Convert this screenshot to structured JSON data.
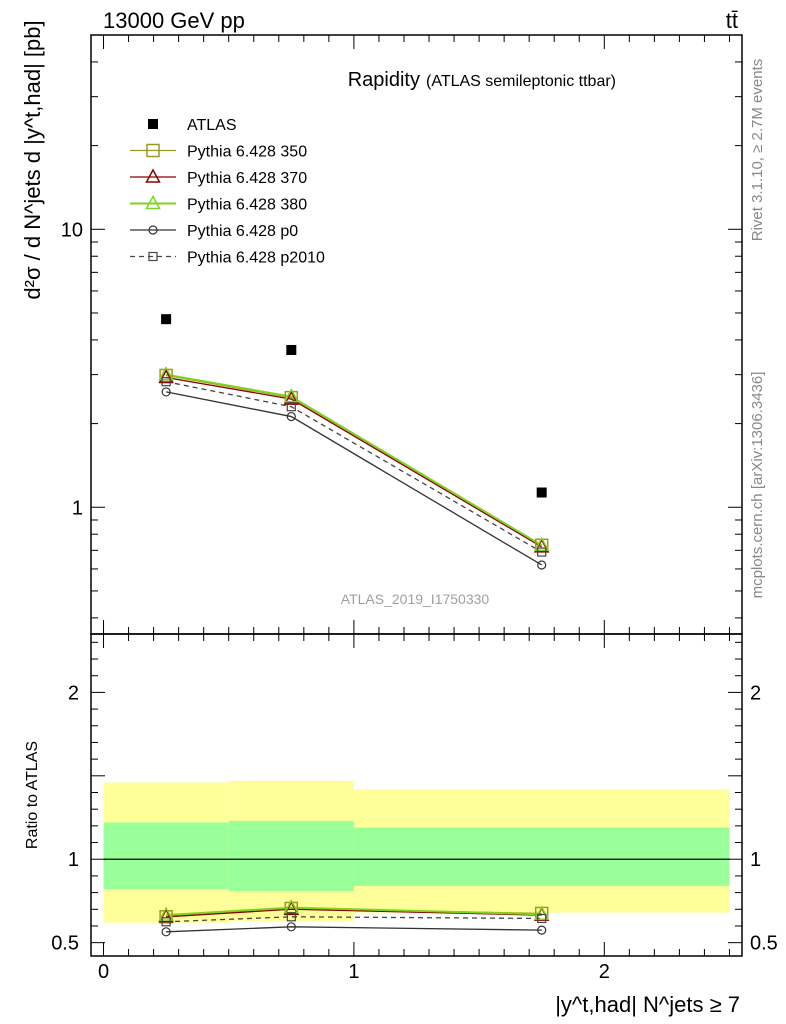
{
  "header": {
    "left": "13000 GeV pp",
    "right": "tt̄"
  },
  "watermark_right_top": "Rivet 3.1.10, ≥ 2.7M events",
  "watermark_right_bottom": "mcplots.cern.ch [arXiv:1306.3436]",
  "analysis_id": "ATLAS_2019_I1750330",
  "chart_data": [
    {
      "type": "scatter",
      "title": "Rapidity",
      "subtitle": "(ATLAS semileptonic ttbar)",
      "ylabel_main": "d²σ / d N^jets d |y^t,had| [pb]",
      "yscale": "log",
      "ylim": [
        0.35,
        50
      ],
      "xlim": [
        -0.05,
        2.55
      ],
      "yticks_labeled": [
        1,
        10
      ],
      "ytick_labels": [
        "1",
        "10"
      ],
      "legend_position": "top-left",
      "data": {
        "name": "ATLAS",
        "x": [
          0.25,
          0.75,
          1.75
        ],
        "y": [
          4.75,
          3.68,
          1.13
        ],
        "color": "#000000",
        "marker": "square-filled"
      },
      "series": [
        {
          "name": "Pythia 6.428 350",
          "x": [
            0.25,
            0.75,
            1.75
          ],
          "y": [
            2.98,
            2.48,
            0.73
          ],
          "color": "#9a9a20",
          "marker": "square-open",
          "dash": "solid"
        },
        {
          "name": "Pythia 6.428 370",
          "x": [
            0.25,
            0.75,
            1.75
          ],
          "y": [
            2.93,
            2.45,
            0.72
          ],
          "color": "#8b0000",
          "marker": "triangle-open",
          "dash": "solid"
        },
        {
          "name": "Pythia 6.428 380",
          "x": [
            0.25,
            0.75,
            1.75
          ],
          "y": [
            3.0,
            2.5,
            0.73
          ],
          "color": "#7fd320",
          "marker": "triangle-open",
          "dash": "solid"
        },
        {
          "name": "Pythia 6.428 p0",
          "x": [
            0.25,
            0.75,
            1.75
          ],
          "y": [
            2.6,
            2.12,
            0.62
          ],
          "color": "#333333",
          "marker": "circle-open",
          "dash": "solid"
        },
        {
          "name": "Pythia 6.428 p2010",
          "x": [
            0.25,
            0.75,
            1.75
          ],
          "y": [
            2.83,
            2.3,
            0.69
          ],
          "color": "#444444",
          "marker": "square-open-small",
          "dash": "dashed"
        }
      ]
    },
    {
      "type": "line",
      "ylabel": "Ratio to ATLAS",
      "xlabel": "|y^t,had| N^jets ≥ 7",
      "xlim": [
        -0.05,
        2.55
      ],
      "ylim": [
        0.42,
        2.35
      ],
      "xticks": [
        0,
        1,
        2
      ],
      "xtick_labels": [
        "0",
        "1",
        "2"
      ],
      "yticks_labeled": [
        0.5,
        1,
        2
      ],
      "ytick_labels": [
        "0.5",
        "1",
        "2"
      ],
      "bands": {
        "bins": [
          [
            0,
            0.5
          ],
          [
            0.5,
            1.0
          ],
          [
            1.0,
            2.5
          ]
        ],
        "yellow": [
          [
            0.62,
            1.46
          ],
          [
            0.63,
            1.47
          ],
          [
            0.68,
            1.42
          ]
        ],
        "green": [
          [
            0.82,
            1.22
          ],
          [
            0.81,
            1.23
          ],
          [
            0.84,
            1.19
          ]
        ],
        "yellow_color": "#ffff99",
        "green_color": "#99ff99"
      },
      "series": [
        {
          "name": "Pythia 6.428 350",
          "x": [
            0.25,
            0.75,
            1.75
          ],
          "y": [
            0.655,
            0.705,
            0.675
          ],
          "color": "#9a9a20",
          "marker": "square-open",
          "dash": "solid"
        },
        {
          "name": "Pythia 6.428 370",
          "x": [
            0.25,
            0.75,
            1.75
          ],
          "y": [
            0.655,
            0.7,
            0.665
          ],
          "color": "#8b0000",
          "marker": "triangle-open",
          "dash": "solid"
        },
        {
          "name": "Pythia 6.428 380",
          "x": [
            0.25,
            0.75,
            1.75
          ],
          "y": [
            0.665,
            0.71,
            0.67
          ],
          "color": "#7fd320",
          "marker": "triangle-open",
          "dash": "solid"
        },
        {
          "name": "Pythia 6.428 p0",
          "x": [
            0.25,
            0.75,
            1.75
          ],
          "y": [
            0.565,
            0.595,
            0.575
          ],
          "color": "#333333",
          "marker": "circle-open",
          "dash": "solid"
        },
        {
          "name": "Pythia 6.428 p2010",
          "x": [
            0.25,
            0.75,
            1.75
          ],
          "y": [
            0.625,
            0.655,
            0.645
          ],
          "color": "#444444",
          "marker": "square-open-small",
          "dash": "dashed"
        }
      ]
    }
  ]
}
